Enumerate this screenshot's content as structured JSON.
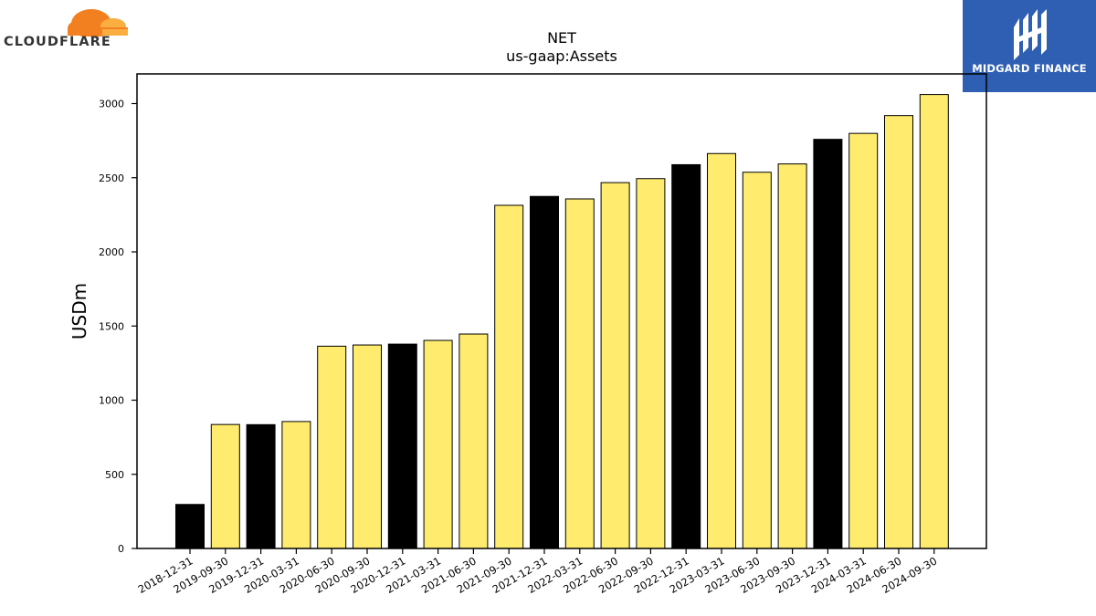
{
  "logos": {
    "left": {
      "text": "CLOUDFLARE",
      "accent": "#f38020"
    },
    "right": {
      "text": "MIDGARD FINANCE",
      "background": "#2f5fb3"
    }
  },
  "colors": {
    "year_end_bar": "#000000",
    "quarter_bar": "#ffec6e",
    "bar_edge": "#000000"
  },
  "chart_data": {
    "type": "bar",
    "title": "NET",
    "subtitle": "us-gaap:Assets",
    "xlabel": "",
    "ylabel": "USDm",
    "ylim": [
      0,
      3200
    ],
    "yticks": [
      0,
      500,
      1000,
      1500,
      2000,
      2500,
      3000
    ],
    "grid": false,
    "categories": [
      "2018-12-31",
      "2019-09-30",
      "2019-12-31",
      "2020-03-31",
      "2020-06-30",
      "2020-09-30",
      "2020-12-31",
      "2021-03-31",
      "2021-06-30",
      "2021-09-30",
      "2021-12-31",
      "2022-03-31",
      "2022-06-30",
      "2022-09-30",
      "2022-12-31",
      "2023-03-31",
      "2023-06-30",
      "2023-09-30",
      "2023-12-31",
      "2024-03-31",
      "2024-06-30",
      "2024-09-30"
    ],
    "values": [
      297,
      836,
      835,
      856,
      1364,
      1372,
      1378,
      1403,
      1446,
      2314,
      2374,
      2357,
      2467,
      2494,
      2588,
      2663,
      2537,
      2593,
      2759,
      2799,
      2919,
      3061
    ],
    "year_end": [
      true,
      false,
      true,
      false,
      false,
      false,
      true,
      false,
      false,
      false,
      true,
      false,
      false,
      false,
      true,
      false,
      false,
      false,
      true,
      false,
      false,
      false
    ]
  }
}
